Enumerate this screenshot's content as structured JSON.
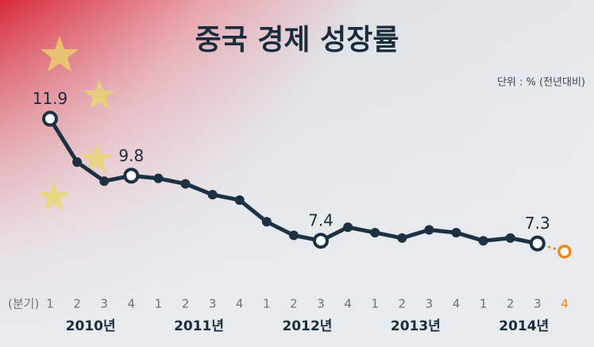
{
  "chart_data": {
    "type": "line",
    "title": "중국 경제 성장률",
    "unit_label": "단위 : % (전년대비)",
    "x_axis_label": "(분기)",
    "categories": [
      "1",
      "2",
      "3",
      "4",
      "1",
      "2",
      "3",
      "4",
      "1",
      "2",
      "3",
      "4",
      "1",
      "2",
      "3",
      "4",
      "1",
      "2",
      "3",
      "4"
    ],
    "years": [
      "2010년",
      "2011년",
      "2012년",
      "2013년",
      "2014년"
    ],
    "series": [
      {
        "color": "#1c3142",
        "values": [
          11.9,
          10.3,
          9.6,
          9.8,
          9.7,
          9.5,
          9.1,
          8.9,
          8.1,
          7.6,
          7.4,
          7.9,
          7.7,
          7.5,
          7.8,
          7.7,
          7.4,
          7.5,
          7.3,
          null
        ],
        "value_labels": [
          "11.9",
          null,
          null,
          "9.8",
          null,
          null,
          null,
          null,
          null,
          null,
          "7.4",
          null,
          null,
          null,
          null,
          null,
          null,
          null,
          "7.3",
          null
        ]
      },
      {
        "color": "#ee8a1c",
        "values": [
          null,
          null,
          null,
          null,
          null,
          null,
          null,
          null,
          null,
          null,
          null,
          null,
          null,
          null,
          null,
          null,
          null,
          null,
          7.3,
          7.0
        ]
      }
    ],
    "ylim": [
      6.0,
      13.0
    ]
  }
}
